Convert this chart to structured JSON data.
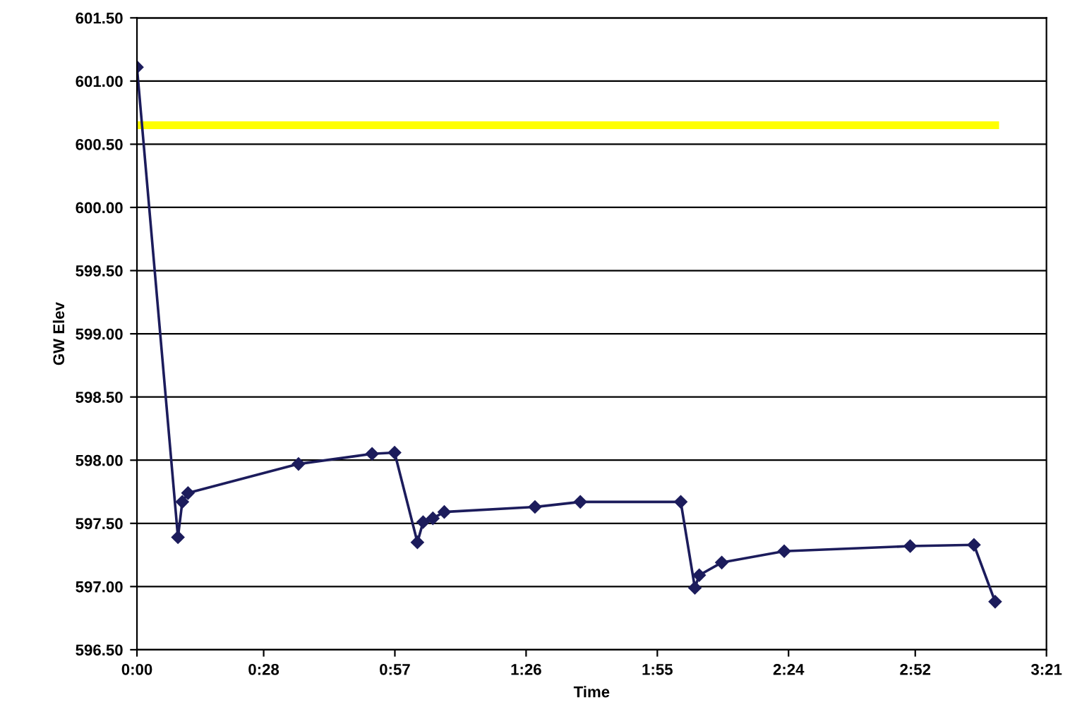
{
  "chart_data": {
    "type": "line",
    "xlabel": "Time",
    "ylabel": "GW Elev",
    "xlim": [
      0,
      3.35
    ],
    "xticks": [
      {
        "value": 0,
        "label": "0:00"
      },
      {
        "value": 0.4667,
        "label": "0:28"
      },
      {
        "value": 0.95,
        "label": "0:57"
      },
      {
        "value": 1.4333,
        "label": "1:26"
      },
      {
        "value": 1.9167,
        "label": "1:55"
      },
      {
        "value": 2.4,
        "label": "2:24"
      },
      {
        "value": 2.8667,
        "label": "2:52"
      },
      {
        "value": 3.35,
        "label": "3:21"
      }
    ],
    "ylim": [
      596.5,
      601.5
    ],
    "yticks": [
      {
        "value": 596.5,
        "label": "596.50"
      },
      {
        "value": 597,
        "label": "597.00"
      },
      {
        "value": 597.5,
        "label": "597.50"
      },
      {
        "value": 598,
        "label": "598.00"
      },
      {
        "value": 598.5,
        "label": "598.50"
      },
      {
        "value": 599,
        "label": "599.00"
      },
      {
        "value": 599.5,
        "label": "599.50"
      },
      {
        "value": 600,
        "label": "600.00"
      },
      {
        "value": 600.5,
        "label": "600.50"
      },
      {
        "value": 601,
        "label": "601.00"
      },
      {
        "value": 601.5,
        "label": "601.50"
      }
    ],
    "grid": "y",
    "legend": false,
    "series": [
      {
        "color": "#ffff00",
        "marker": "none",
        "x": [
          0,
          3.161
        ],
        "values": [
          600.65,
          600.65
        ]
      },
      {
        "color": "#1c1c5c",
        "marker": "diamond",
        "x": [
          0,
          0.151,
          0.167,
          0.188,
          0.595,
          0.866,
          0.949,
          1.033,
          1.054,
          1.09,
          1.132,
          1.466,
          1.633,
          2.003,
          2.055,
          2.071,
          2.154,
          2.384,
          2.848,
          3.083,
          3.161
        ],
        "values": [
          601.11,
          597.39,
          597.67,
          597.74,
          597.97,
          598.05,
          598.06,
          597.35,
          597.51,
          597.54,
          597.59,
          597.63,
          597.67,
          597.67,
          596.99,
          597.09,
          597.19,
          597.28,
          597.32,
          597.33,
          596.88
        ]
      }
    ]
  }
}
